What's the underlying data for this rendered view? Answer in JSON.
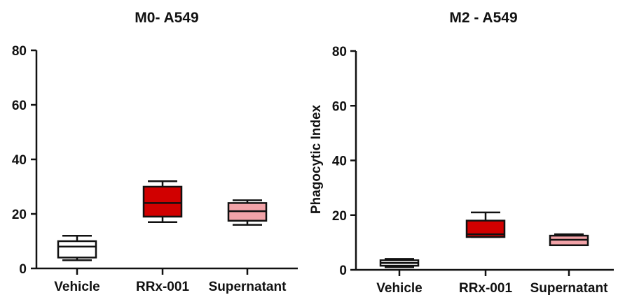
{
  "chart_data": [
    {
      "type": "box",
      "title": "M0- A549",
      "xlabel": "",
      "ylabel": "",
      "ylim": [
        0,
        80
      ],
      "yticks": [
        0,
        20,
        40,
        60,
        80
      ],
      "categories": [
        "Vehicle",
        "RRx-001",
        "Supernatant"
      ],
      "boxes": [
        {
          "category": "Vehicle",
          "min": 3,
          "q1": 4,
          "median": 8,
          "q3": 10,
          "max": 12,
          "color": "#ffffff"
        },
        {
          "category": "RRx-001",
          "min": 17,
          "q1": 19,
          "median": 24,
          "q3": 30,
          "max": 32,
          "color": "#d10000"
        },
        {
          "category": "Supernatant",
          "min": 16,
          "q1": 17.5,
          "median": 21,
          "q3": 24,
          "max": 25,
          "color": "#f2a3a8"
        }
      ]
    },
    {
      "type": "box",
      "title": "M2 - A549",
      "xlabel": "",
      "ylabel": "Phagocytic Index",
      "ylim": [
        0,
        80
      ],
      "yticks": [
        0,
        20,
        40,
        60,
        80
      ],
      "categories": [
        "Vehicle",
        "RRx-001",
        "Supernatant"
      ],
      "boxes": [
        {
          "category": "Vehicle",
          "min": 1,
          "q1": 1.5,
          "median": 2.5,
          "q3": 3.5,
          "max": 4,
          "color": "#ffffff"
        },
        {
          "category": "RRx-001",
          "min": 12,
          "q1": 12,
          "median": 13,
          "q3": 18,
          "max": 21,
          "color": "#d10000"
        },
        {
          "category": "Supernatant",
          "min": 9,
          "q1": 9,
          "median": 11,
          "q3": 12.5,
          "max": 13,
          "color": "#f2a3a8"
        }
      ]
    }
  ]
}
